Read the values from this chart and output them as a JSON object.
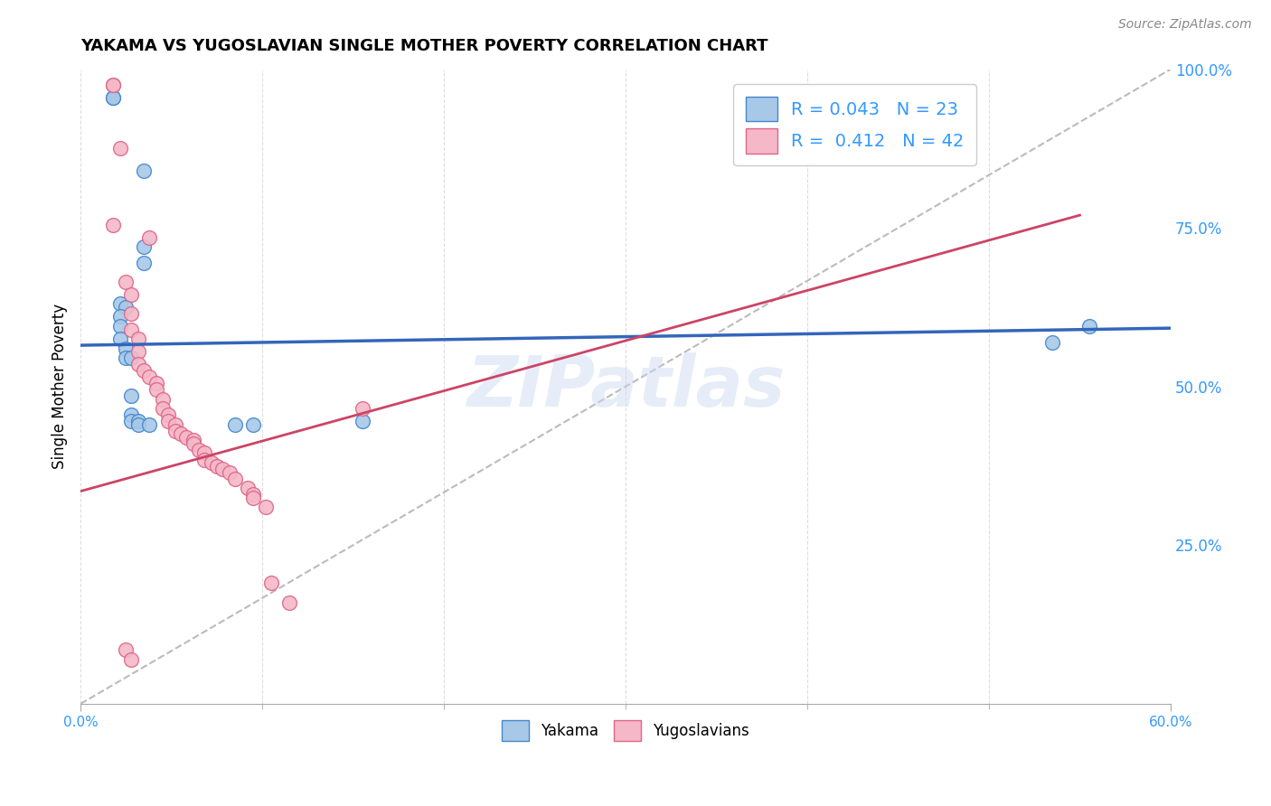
{
  "title": "YAKAMA VS YUGOSLAVIAN SINGLE MOTHER POVERTY CORRELATION CHART",
  "source": "Source: ZipAtlas.com",
  "ylabel": "Single Mother Poverty",
  "watermark": "ZIPatlas",
  "legend_r1": "R = 0.043   N = 23",
  "legend_r2": "R =  0.412   N = 42",
  "blue_fill": "#a8c8e8",
  "pink_fill": "#f4b8c8",
  "blue_edge": "#4488cc",
  "pink_edge": "#dd6688",
  "blue_line": "#3366bb",
  "pink_line": "#cc4466",
  "diagonal_color": "#bbbbbb",
  "grid_color": "#dddddd",
  "text_blue": "#3399ff",
  "background": "#ffffff",
  "yakama_points": [
    [
      0.018,
      0.955
    ],
    [
      0.018,
      0.955
    ],
    [
      0.035,
      0.84
    ],
    [
      0.035,
      0.72
    ],
    [
      0.035,
      0.695
    ],
    [
      0.022,
      0.63
    ],
    [
      0.025,
      0.625
    ],
    [
      0.022,
      0.61
    ],
    [
      0.022,
      0.595
    ],
    [
      0.022,
      0.575
    ],
    [
      0.025,
      0.56
    ],
    [
      0.025,
      0.545
    ],
    [
      0.028,
      0.545
    ],
    [
      0.028,
      0.485
    ],
    [
      0.028,
      0.455
    ],
    [
      0.028,
      0.445
    ],
    [
      0.032,
      0.445
    ],
    [
      0.032,
      0.44
    ],
    [
      0.038,
      0.44
    ],
    [
      0.085,
      0.44
    ],
    [
      0.095,
      0.44
    ],
    [
      0.155,
      0.445
    ],
    [
      0.555,
      0.595
    ],
    [
      0.535,
      0.57
    ]
  ],
  "yugoslavian_points": [
    [
      0.018,
      0.975
    ],
    [
      0.018,
      0.975
    ],
    [
      0.022,
      0.875
    ],
    [
      0.018,
      0.755
    ],
    [
      0.038,
      0.735
    ],
    [
      0.025,
      0.665
    ],
    [
      0.028,
      0.645
    ],
    [
      0.028,
      0.615
    ],
    [
      0.028,
      0.59
    ],
    [
      0.032,
      0.575
    ],
    [
      0.032,
      0.555
    ],
    [
      0.032,
      0.535
    ],
    [
      0.035,
      0.525
    ],
    [
      0.038,
      0.515
    ],
    [
      0.042,
      0.505
    ],
    [
      0.042,
      0.495
    ],
    [
      0.045,
      0.48
    ],
    [
      0.045,
      0.465
    ],
    [
      0.048,
      0.455
    ],
    [
      0.048,
      0.445
    ],
    [
      0.052,
      0.44
    ],
    [
      0.052,
      0.43
    ],
    [
      0.055,
      0.425
    ],
    [
      0.058,
      0.42
    ],
    [
      0.062,
      0.415
    ],
    [
      0.062,
      0.41
    ],
    [
      0.065,
      0.4
    ],
    [
      0.068,
      0.395
    ],
    [
      0.068,
      0.385
    ],
    [
      0.072,
      0.38
    ],
    [
      0.075,
      0.375
    ],
    [
      0.078,
      0.37
    ],
    [
      0.082,
      0.365
    ],
    [
      0.085,
      0.355
    ],
    [
      0.092,
      0.34
    ],
    [
      0.095,
      0.33
    ],
    [
      0.095,
      0.325
    ],
    [
      0.102,
      0.31
    ],
    [
      0.105,
      0.19
    ],
    [
      0.115,
      0.16
    ],
    [
      0.155,
      0.465
    ],
    [
      0.025,
      0.085
    ],
    [
      0.028,
      0.07
    ]
  ],
  "xmin": 0.0,
  "xmax": 0.6,
  "ymin": 0.0,
  "ymax": 1.0,
  "blue_line_x": [
    0.0,
    0.6
  ],
  "blue_line_y": [
    0.565,
    0.592
  ],
  "pink_line_x": [
    0.0,
    0.55
  ],
  "pink_line_y": [
    0.335,
    0.77
  ]
}
